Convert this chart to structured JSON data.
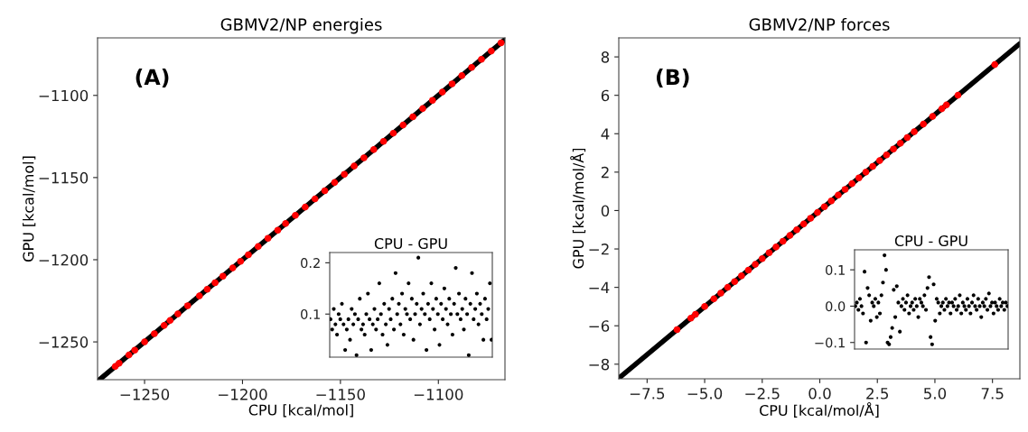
{
  "chart_data": [
    {
      "type": "scatter",
      "title": "GBMV2/NP energies",
      "xlabel": "CPU [kcal/mol]",
      "ylabel": "GPU [kcal/mol]",
      "annotations": [
        "(A)"
      ],
      "xlim": [
        -1274,
        -1066
      ],
      "ylim": [
        -1273,
        -1065
      ],
      "xticks": [
        {
          "value": -1250,
          "label": "−1250"
        },
        {
          "value": -1200,
          "label": "−1200"
        },
        {
          "value": -1150,
          "label": "−1150"
        },
        {
          "value": -1100,
          "label": "−1100"
        }
      ],
      "yticks": [
        {
          "value": -1250,
          "label": "−1250"
        },
        {
          "value": -1200,
          "label": "−1200"
        },
        {
          "value": -1150,
          "label": "−1150"
        },
        {
          "value": -1100,
          "label": "−1100"
        }
      ],
      "series": [
        {
          "type": "line",
          "marker": "none",
          "color": "#000000",
          "x": [
            -1273,
            -1066
          ],
          "values": [
            -1273,
            -1066
          ]
        },
        {
          "type": "scatter",
          "marker": "circle",
          "color": "#ff0000",
          "x": [
            -1265,
            -1263,
            -1258,
            -1255,
            -1250,
            -1245,
            -1240,
            -1237,
            -1233,
            -1228,
            -1222,
            -1218,
            -1214,
            -1210,
            -1205,
            -1201,
            -1197,
            -1192,
            -1187,
            -1182,
            -1178,
            -1173,
            -1168,
            -1163,
            -1158,
            -1153,
            -1148,
            -1143,
            -1138,
            -1133,
            -1128,
            -1123,
            -1118,
            -1113,
            -1108,
            -1103,
            -1098,
            -1093,
            -1088,
            -1083,
            -1078,
            -1073,
            -1068
          ],
          "values": [
            -1265,
            -1263,
            -1258,
            -1255,
            -1250,
            -1245,
            -1240,
            -1237,
            -1233,
            -1228,
            -1222,
            -1218,
            -1214,
            -1210,
            -1205,
            -1201,
            -1197,
            -1192,
            -1187,
            -1182,
            -1178,
            -1173,
            -1168,
            -1163,
            -1158,
            -1153,
            -1148,
            -1143,
            -1138,
            -1133,
            -1128,
            -1123,
            -1118,
            -1113,
            -1108,
            -1103,
            -1098,
            -1093,
            -1088,
            -1083,
            -1078,
            -1073,
            -1068
          ]
        }
      ]
    },
    {
      "type": "scatter",
      "title": "CPU - GPU",
      "marker": "circle",
      "color": "#000000",
      "tick_labels": "y",
      "ylim": [
        0.016,
        0.22
      ],
      "yticks": [
        0.1,
        0.2
      ],
      "categories": [
        null,
        null,
        null,
        null,
        null,
        null,
        null,
        null,
        null,
        null,
        null,
        null,
        null,
        null,
        null,
        null,
        null,
        null,
        null,
        null,
        null,
        null,
        null,
        null,
        null,
        null,
        null,
        null,
        null,
        null,
        null,
        null,
        null,
        null,
        null,
        null,
        null,
        null,
        null,
        null,
        null,
        null,
        null,
        null,
        null,
        null,
        null,
        null,
        null,
        null,
        null,
        null,
        null,
        null,
        null,
        null,
        null,
        null,
        null,
        null,
        null,
        null,
        null,
        null,
        null,
        null,
        null,
        null,
        null,
        null,
        null,
        null,
        null,
        null,
        null,
        null,
        null,
        null,
        null,
        null,
        null,
        null,
        null,
        null,
        null,
        null,
        null,
        null,
        null,
        null,
        null,
        null,
        null,
        null,
        null,
        null,
        null,
        null,
        null,
        null
      ],
      "values": [
        0.09,
        0.07,
        0.11,
        0.08,
        0.06,
        0.1,
        0.09,
        0.12,
        0.08,
        0.03,
        0.07,
        0.09,
        0.05,
        0.11,
        0.08,
        0.1,
        0.02,
        0.09,
        0.13,
        0.07,
        0.08,
        0.06,
        0.1,
        0.14,
        0.09,
        0.03,
        0.08,
        0.11,
        0.07,
        0.09,
        0.16,
        0.1,
        0.06,
        0.12,
        0.08,
        0.04,
        0.11,
        0.09,
        0.13,
        0.07,
        0.18,
        0.1,
        0.12,
        0.08,
        0.14,
        0.06,
        0.11,
        0.1,
        0.16,
        0.09,
        0.13,
        0.05,
        0.1,
        0.12,
        0.21,
        0.08,
        0.11,
        0.14,
        0.1,
        0.03,
        0.12,
        0.09,
        0.16,
        0.11,
        0.07,
        0.13,
        0.1,
        0.04,
        0.12,
        0.09,
        0.15,
        0.11,
        0.08,
        0.13,
        0.1,
        0.06,
        0.12,
        0.19,
        0.1,
        0.14,
        0.09,
        0.11,
        0.07,
        0.13,
        0.1,
        0.02,
        0.12,
        0.18,
        0.09,
        0.11,
        0.14,
        0.08,
        0.12,
        0.1,
        0.05,
        0.13,
        0.09,
        0.11,
        0.16,
        0.05
      ]
    },
    {
      "type": "scatter",
      "title": "GBMV2/NP forces",
      "xlabel": "CPU [kcal/mol/Å]",
      "ylabel": "GPU [kcal/mol/Å]",
      "annotations": [
        "(B)"
      ],
      "xlim": [
        -8.73,
        8.69
      ],
      "ylim": [
        -8.76,
        8.99
      ],
      "xticks": [
        {
          "value": -7.5,
          "label": "−7.5"
        },
        {
          "value": -5,
          "label": "−5.0"
        },
        {
          "value": -2.5,
          "label": "−2.5"
        },
        {
          "value": 0,
          "label": "0.0"
        },
        {
          "value": 2.5,
          "label": "2.5"
        },
        {
          "value": 5,
          "label": "5.0"
        },
        {
          "value": 7.5,
          "label": "7.5"
        }
      ],
      "yticks": [
        {
          "value": -8,
          "label": "−8"
        },
        {
          "value": -6,
          "label": "−6"
        },
        {
          "value": -4,
          "label": "−4"
        },
        {
          "value": -2,
          "label": "−2"
        },
        0,
        2,
        4,
        6,
        8
      ],
      "series": [
        {
          "type": "line",
          "marker": "none",
          "color": "#000000",
          "x": [
            -8.73,
            8.69
          ],
          "values": [
            -8.73,
            8.69
          ]
        },
        {
          "type": "scatter",
          "marker": "circle",
          "color": "#ff0000",
          "x": [
            -6.2,
            -5.6,
            -5.4,
            -5.0,
            -4.6,
            -4.3,
            -4.0,
            -3.7,
            -3.4,
            -3.1,
            -2.8,
            -2.5,
            -2.2,
            -1.9,
            -1.6,
            -1.3,
            -1.0,
            -0.7,
            -0.4,
            -0.1,
            0.2,
            0.5,
            0.8,
            1.1,
            1.4,
            1.7,
            2.0,
            2.3,
            2.6,
            2.9,
            3.2,
            3.5,
            3.8,
            4.1,
            4.5,
            4.9,
            5.3,
            5.5,
            6.0,
            7.6
          ],
          "values": [
            -6.2,
            -5.6,
            -5.4,
            -5.0,
            -4.6,
            -4.3,
            -4.0,
            -3.7,
            -3.4,
            -3.1,
            -2.8,
            -2.5,
            -2.2,
            -1.9,
            -1.6,
            -1.3,
            -1.0,
            -0.7,
            -0.4,
            -0.1,
            0.2,
            0.5,
            0.8,
            1.1,
            1.4,
            1.7,
            2.0,
            2.3,
            2.6,
            2.9,
            3.2,
            3.5,
            3.8,
            4.1,
            4.5,
            4.9,
            5.3,
            5.5,
            6.0,
            7.6
          ]
        }
      ]
    },
    {
      "type": "scatter",
      "title": "CPU - GPU",
      "marker": "circle",
      "color": "#000000",
      "tick_labels": "y",
      "ylim": [
        -0.118,
        0.155
      ],
      "yticks": [
        {
          "value": -0.1,
          "label": "−0.1"
        },
        {
          "value": 0,
          "label": "0.0"
        },
        0.1
      ],
      "categories": [
        null,
        null,
        null,
        null,
        null,
        null,
        null,
        null,
        null,
        null,
        null,
        null,
        null,
        null,
        null,
        null,
        null,
        null,
        null,
        null,
        null,
        null,
        null,
        null,
        null,
        null,
        null,
        null,
        null,
        null,
        null,
        null,
        null,
        null,
        null,
        null,
        null,
        null,
        null,
        null,
        null,
        null,
        null,
        null,
        null,
        null,
        null,
        null,
        null,
        null,
        null,
        null,
        null,
        null,
        null,
        null,
        null,
        null,
        null,
        null,
        null,
        null,
        null,
        null,
        null,
        null,
        null,
        null,
        null,
        null,
        null,
        null,
        null,
        null,
        null,
        null,
        null,
        null,
        null,
        null,
        null,
        null,
        null,
        null,
        null,
        null,
        null,
        null,
        null,
        null,
        null,
        null,
        null,
        null,
        null,
        null,
        null,
        null,
        null,
        null
      ],
      "values": [
        0,
        0.01,
        -0.01,
        0.02,
        0,
        -0.02,
        0.095,
        -0.1,
        0.05,
        0.03,
        -0.04,
        0.01,
        0,
        0.02,
        -0.03,
        0.01,
        -0.02,
        0.03,
        0.065,
        0.14,
        0.1,
        -0.1,
        -0.105,
        -0.085,
        -0.06,
        0.045,
        -0.03,
        0.055,
        0.01,
        -0.07,
        0,
        0.02,
        -0.01,
        0.01,
        0.03,
        -0.02,
        0,
        0.01,
        -0.01,
        0.02,
        0,
        -0.03,
        0.02,
        0.01,
        0,
        0.03,
        -0.01,
        0.05,
        0.08,
        -0.085,
        -0.105,
        0.06,
        -0.04,
        0.02,
        0.01,
        -0.02,
        0,
        0.01,
        -0.01,
        0.02,
        0,
        0.01,
        -0.02,
        0.01,
        0,
        0.02,
        -0.01,
        0,
        0.03,
        -0.02,
        0.01,
        0,
        -0.01,
        0.02,
        0,
        -0.02,
        0.01,
        0.03,
        0,
        -0.01,
        0.02,
        0,
        -0.03,
        0.01,
        0,
        0.02,
        -0.01,
        0.035,
        0,
        0.01,
        -0.02,
        0.01,
        0,
        -0.01,
        0.02,
        0,
        0.01,
        -0.01,
        0.01,
        0
      ]
    }
  ]
}
